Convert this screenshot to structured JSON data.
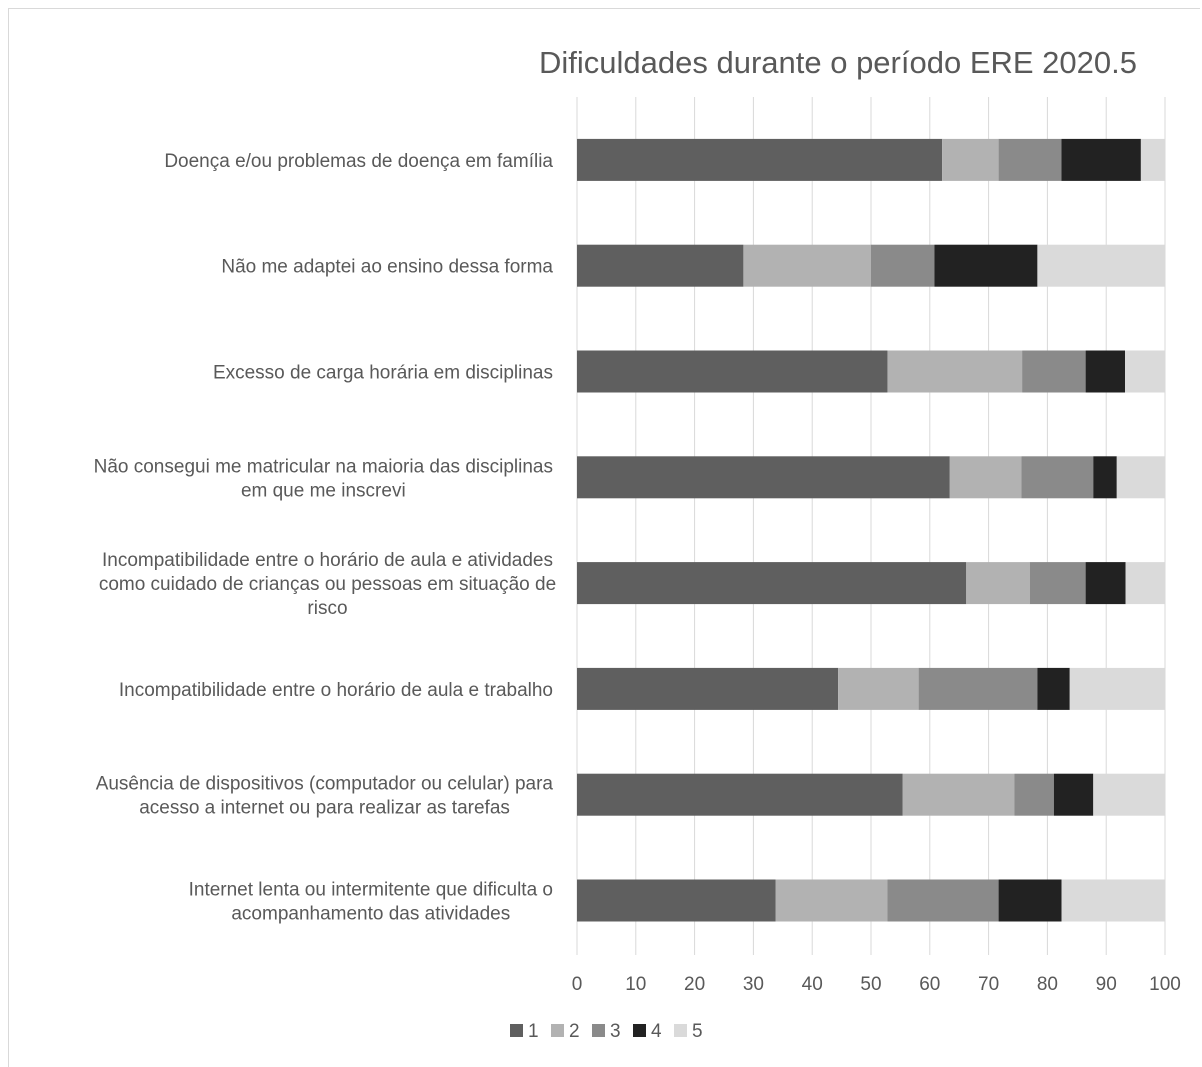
{
  "chart_data": {
    "type": "bar",
    "orientation": "horizontal",
    "stacked": true,
    "title": "Dificuldades durante o período ERE 2020.5",
    "categories": [
      "Doença e/ou problemas de doença em família",
      "Não me adaptei ao ensino dessa forma",
      "Excesso de carga horária em disciplinas",
      "Não consegui me matricular na maioria das disciplinas em que me inscrevi",
      "Incompatibilidade entre o horário de aula e atividades como cuidado de crianças ou pessoas em situação de risco",
      "Incompatibilidade entre o horário de aula e trabalho",
      "Ausência de dispositivos (computador ou celular) para acesso a internet ou para realizar as tarefas",
      "Internet lenta ou intermitente que dificulta o acompanhamento das atividades"
    ],
    "category_lines": [
      [
        "Doença e/ou problemas de doença em família"
      ],
      [
        "Não me adaptei ao ensino dessa forma"
      ],
      [
        "Excesso de carga horária em disciplinas"
      ],
      [
        "Não consegui me matricular na maioria das disciplinas",
        "em que me inscrevi"
      ],
      [
        "Incompatibilidade entre o horário de aula e atividades",
        "como cuidado de crianças ou pessoas em situação de",
        "risco"
      ],
      [
        "Incompatibilidade entre o horário de aula e trabalho"
      ],
      [
        "Ausência de dispositivos (computador ou celular) para",
        "acesso a internet ou para realizar as tarefas"
      ],
      [
        "Internet lenta ou intermitente que dificulta o",
        "acompanhamento das atividades"
      ]
    ],
    "series": [
      {
        "name": "1",
        "color": "#5f5f5f",
        "values": [
          62.1,
          28.3,
          52.8,
          63.4,
          66.2,
          44.4,
          55.4,
          33.8
        ]
      },
      {
        "name": "2",
        "color": "#b2b2b2",
        "values": [
          9.6,
          21.7,
          22.9,
          12.2,
          10.8,
          13.7,
          19.0,
          19.0
        ]
      },
      {
        "name": "3",
        "color": "#8a8a8a",
        "values": [
          10.7,
          10.8,
          10.8,
          12.2,
          9.5,
          20.2,
          6.7,
          18.9
        ]
      },
      {
        "name": "4",
        "color": "#222222",
        "values": [
          13.5,
          17.5,
          6.7,
          4.0,
          6.8,
          5.5,
          6.7,
          10.7
        ]
      },
      {
        "name": "5",
        "color": "#dadada",
        "values": [
          4.1,
          21.7,
          6.8,
          8.2,
          6.7,
          16.2,
          12.2,
          17.6
        ]
      }
    ],
    "xlim": [
      0,
      100
    ],
    "xticks": [
      "0",
      "10",
      "20",
      "30",
      "40",
      "50",
      "60",
      "70",
      "80",
      "90",
      "100"
    ],
    "grid": true,
    "legend": "bottom"
  }
}
